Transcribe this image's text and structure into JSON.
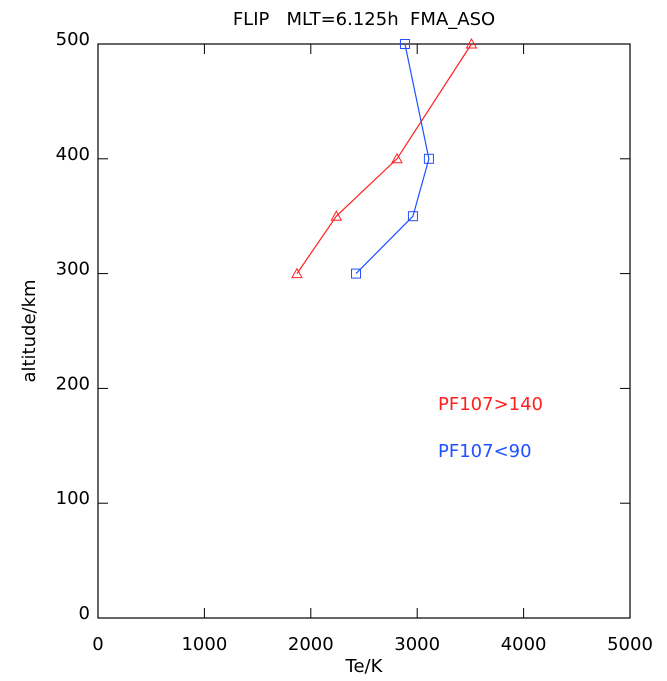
{
  "chart_data": {
    "type": "line",
    "title": "FLIP   MLT=6.125h  FMA_ASO",
    "x_label": "Te/K",
    "y_label": "altitude/km",
    "xlim": [
      0,
      5000
    ],
    "xticks": [
      0,
      1000,
      2000,
      3000,
      4000,
      5000
    ],
    "ylim": [
      0,
      500
    ],
    "yticks": [
      0,
      100,
      200,
      300,
      400,
      500
    ],
    "legend": "right",
    "series": [
      {
        "name": "PF107>140",
        "color": "#ff2020",
        "marker": "triangle",
        "x": [
          1870,
          2240,
          2810,
          3510
        ],
        "values": [
          300,
          350,
          400,
          500
        ]
      },
      {
        "name": "PF107<90",
        "color": "#2050ff",
        "marker": "square",
        "x": [
          2425,
          2960,
          3110,
          2885
        ],
        "values": [
          300,
          350,
          400,
          500
        ]
      }
    ]
  }
}
